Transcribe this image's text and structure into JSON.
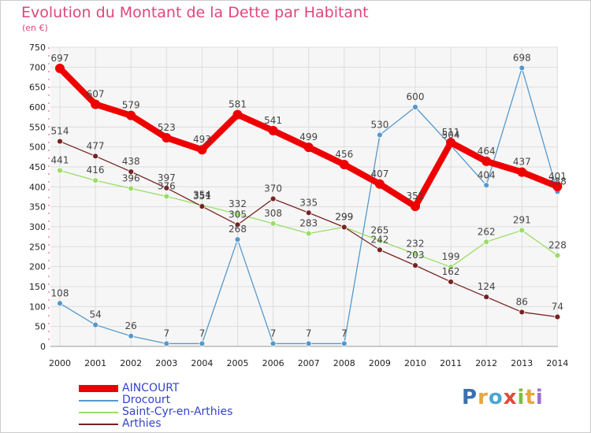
{
  "title": "Evolution du Montant de la Dette par Habitant",
  "subtitle": "(en €)",
  "logo": [
    "P",
    "r",
    "o",
    "x",
    "i",
    "t",
    "i"
  ],
  "logo_colors": [
    "#3a6fb0",
    "#e8a53a",
    "#4aa7d6",
    "#e04a3a",
    "#7bbf3a",
    "#e8a53a",
    "#9c6fd0"
  ],
  "chart_data": {
    "type": "line",
    "x": [
      "2000",
      "2001",
      "2002",
      "2003",
      "2004",
      "2005",
      "2006",
      "2007",
      "2008",
      "2009",
      "2010",
      "2011",
      "2012",
      "2013",
      "2014"
    ],
    "ylim": [
      0,
      750
    ],
    "yticks": [
      0,
      50,
      100,
      150,
      200,
      250,
      300,
      350,
      400,
      450,
      500,
      550,
      600,
      650,
      700,
      750
    ],
    "grid": true,
    "legend_position": "bottom-left",
    "series": [
      {
        "name": "AINCOURT",
        "color": "#ee0000",
        "values": [
          697,
          607,
          579,
          523,
          493,
          581,
          541,
          499,
          456,
          407,
          351,
          511,
          464,
          437,
          401
        ]
      },
      {
        "name": "Drocourt",
        "color": "#5599cc",
        "values": [
          108,
          54,
          26,
          7,
          7,
          268,
          7,
          7,
          7,
          530,
          600,
          504,
          404,
          698,
          388
        ]
      },
      {
        "name": "Saint-Cyr-en-Arthies",
        "color": "#99dd66",
        "values": [
          441,
          416,
          396,
          376,
          354,
          332,
          308,
          283,
          299,
          265,
          232,
          199,
          262,
          291,
          228
        ]
      },
      {
        "name": "Arthies",
        "color": "#772222",
        "values": [
          514,
          477,
          438,
          397,
          351,
          305,
          370,
          335,
          299,
          242,
          203,
          162,
          124,
          86,
          74
        ]
      }
    ]
  }
}
